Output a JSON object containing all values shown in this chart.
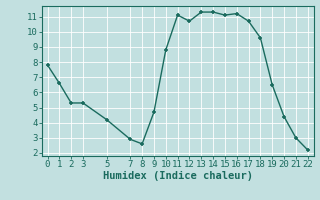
{
  "x": [
    0,
    1,
    2,
    3,
    5,
    7,
    8,
    9,
    10,
    11,
    12,
    13,
    14,
    15,
    16,
    17,
    18,
    19,
    20,
    21,
    22
  ],
  "y": [
    7.8,
    6.6,
    5.3,
    5.3,
    4.2,
    2.9,
    2.6,
    4.7,
    8.8,
    11.1,
    10.7,
    11.3,
    11.3,
    11.1,
    11.2,
    10.7,
    9.6,
    6.5,
    4.4,
    3.0,
    2.2
  ],
  "line_color": "#1a6b5e",
  "marker": "+",
  "bg_color": "#c2e0e0",
  "grid_color": "#ffffff",
  "xlabel": "Humidex (Indice chaleur)",
  "ylim": [
    1.8,
    11.7
  ],
  "xlim": [
    -0.5,
    22.5
  ],
  "xticks": [
    0,
    1,
    2,
    3,
    5,
    7,
    8,
    9,
    10,
    11,
    12,
    13,
    14,
    15,
    16,
    17,
    18,
    19,
    20,
    21,
    22
  ],
  "yticks": [
    2,
    3,
    4,
    5,
    6,
    7,
    8,
    9,
    10,
    11
  ],
  "tick_color": "#1a6b5e",
  "label_fontsize": 7.5,
  "tick_fontsize": 6.5
}
